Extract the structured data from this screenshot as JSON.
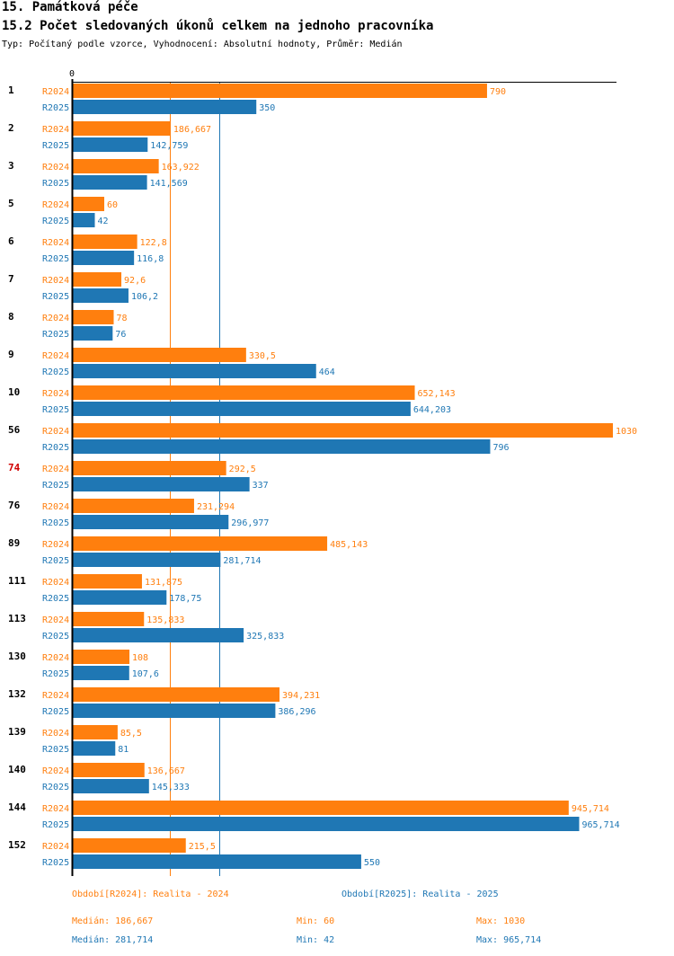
{
  "header": {
    "title": "15. Památková péče",
    "subtitle": "15.2 Počet sledovaných úkonů celkem na jednoho pracovníka",
    "type_line": "Typ: Počítaný podle vzorce, Vyhodnocení: Absolutní hodnoty, Průměr: Medián"
  },
  "colors": {
    "r2024": "#ff7f0e",
    "r2025": "#1f77b4",
    "highlight": "#d00000"
  },
  "chart_data": {
    "type": "bar",
    "orientation": "horizontal",
    "axis_zero_label": "0",
    "categories": [
      "1",
      "2",
      "3",
      "5",
      "6",
      "7",
      "8",
      "9",
      "10",
      "56",
      "74",
      "76",
      "89",
      "111",
      "113",
      "130",
      "132",
      "139",
      "140",
      "144",
      "152"
    ],
    "highlight_category": "74",
    "series": [
      {
        "name": "R2024",
        "values": [
          790,
          186.667,
          163.922,
          60,
          122.8,
          92.6,
          78,
          330.5,
          652.143,
          1030,
          292.5,
          231.294,
          485.143,
          131.875,
          135.833,
          108,
          394.231,
          85.5,
          136.667,
          945.714,
          215.5
        ],
        "labels": [
          "790",
          "186,667",
          "163,922",
          "60",
          "122,8",
          "92,6",
          "78",
          "330,5",
          "652,143",
          "1030",
          "292,5",
          "231,294",
          "485,143",
          "131,875",
          "135,833",
          "108",
          "394,231",
          "85,5",
          "136,667",
          "945,714",
          "215,5"
        ]
      },
      {
        "name": "R2025",
        "values": [
          350,
          142.759,
          141.569,
          42,
          116.8,
          106.2,
          76,
          464,
          644.203,
          796,
          337,
          296.977,
          281.714,
          178.75,
          325.833,
          107.6,
          386.296,
          81,
          145.333,
          965.714,
          550
        ],
        "labels": [
          "350",
          "142,759",
          "141,569",
          "42",
          "116,8",
          "106,2",
          "76",
          "464",
          "644,203",
          "796",
          "337",
          "296,977",
          "281,714",
          "178,75",
          "325,833",
          "107,6",
          "386,296",
          "81",
          "145,333",
          "965,714",
          "550"
        ]
      }
    ],
    "median_lines": [
      186.667,
      281.714
    ],
    "xlim": [
      0,
      1030
    ]
  },
  "legend": {
    "r2024": "Období[R2024]: Realita - 2024",
    "r2025": "Období[R2025]: Realita - 2025"
  },
  "stats": {
    "r2024": {
      "median": "Medián: 186,667",
      "min": "Min: 60",
      "max": "Max: 1030"
    },
    "r2025": {
      "median": "Medián: 281,714",
      "min": "Min: 42",
      "max": "Max: 965,714"
    }
  }
}
